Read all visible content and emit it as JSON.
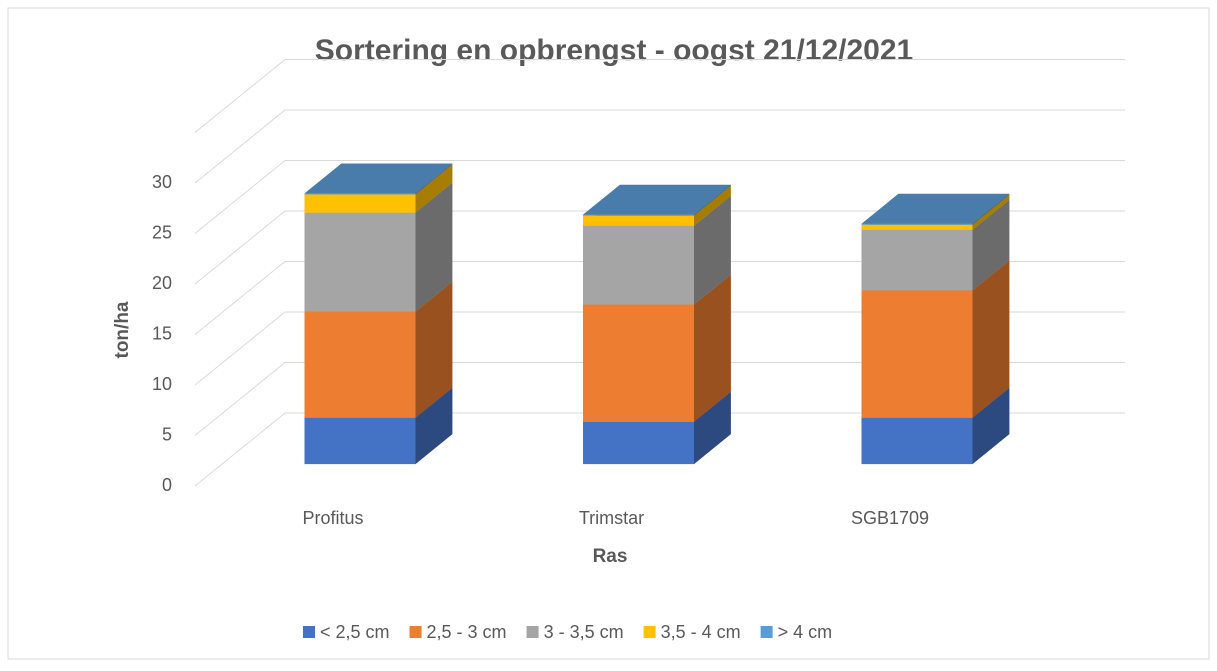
{
  "chart_data": {
    "type": "bar3d_stacked",
    "title": "Sortering en opbrengst - oogst 21/12/2021",
    "x_label": "Ras",
    "y_label": "ton/ha",
    "categories": [
      "Profitus",
      "Trimstar",
      "SGB1709"
    ],
    "series": [
      {
        "name": "< 2,5 cm",
        "color": "#4472c4",
        "values": [
          4.6,
          4.2,
          4.6
        ]
      },
      {
        "name": "2,5 - 3 cm",
        "color": "#ed7d31",
        "values": [
          10.5,
          11.6,
          12.6
        ]
      },
      {
        "name": "3 - 3,5 cm",
        "color": "#a5a5a5",
        "values": [
          9.8,
          7.8,
          6.0
        ]
      },
      {
        "name": "3,5 - 4 cm",
        "color": "#ffc000",
        "values": [
          1.8,
          1.0,
          0.5
        ]
      },
      {
        "name": "> 4 cm",
        "color": "#5b9bd5",
        "values": [
          0.1,
          0.1,
          0.1
        ]
      }
    ],
    "ylim": [
      0,
      35
    ],
    "yticks": [
      0,
      5,
      10,
      15,
      20,
      25,
      30
    ],
    "grid": true,
    "legend": "bottom"
  }
}
